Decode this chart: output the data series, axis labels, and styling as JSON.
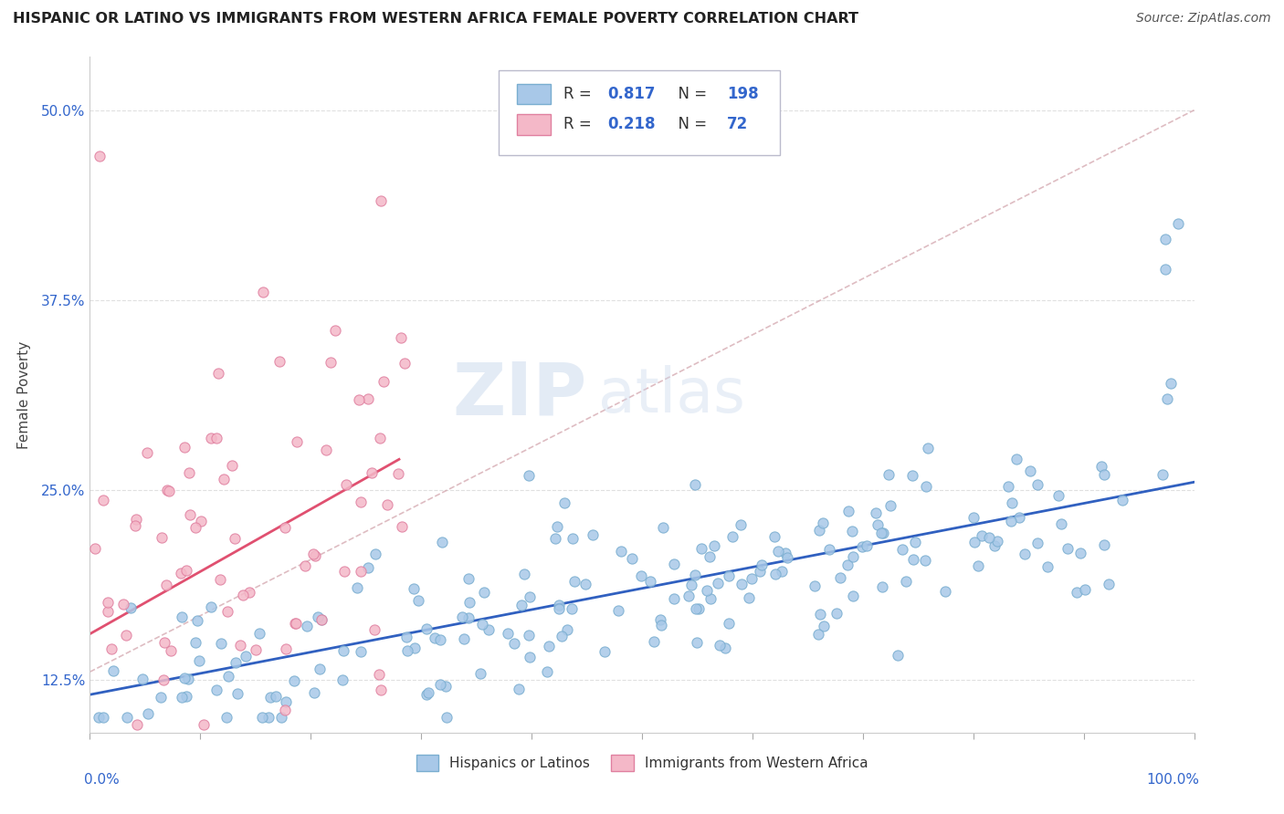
{
  "title": "HISPANIC OR LATINO VS IMMIGRANTS FROM WESTERN AFRICA FEMALE POVERTY CORRELATION CHART",
  "source_text": "Source: ZipAtlas.com",
  "ylabel": "Female Poverty",
  "ytick_labels": [
    "12.5%",
    "25.0%",
    "37.5%",
    "50.0%"
  ],
  "ytick_values": [
    0.125,
    0.25,
    0.375,
    0.5
  ],
  "xlim": [
    0.0,
    1.0
  ],
  "ylim": [
    0.09,
    0.535
  ],
  "blue_dot_color": "#A8C8E8",
  "blue_dot_edge": "#7AAED0",
  "pink_dot_color": "#F4B8C8",
  "pink_dot_edge": "#E080A0",
  "blue_line_color": "#3060C0",
  "pink_line_color": "#E05070",
  "dashed_line_color": "#D0A0A8",
  "R_blue": 0.817,
  "N_blue": 198,
  "R_pink": 0.218,
  "N_pink": 72,
  "legend_label_blue": "Hispanics or Latinos",
  "legend_label_pink": "Immigrants from Western Africa",
  "watermark": "ZIPatlas",
  "background_color": "#FFFFFF",
  "grid_color": "#DDDDDD",
  "title_color": "#222222",
  "source_color": "#555555",
  "ylabel_color": "#444444",
  "ytick_color": "#3366CC",
  "xlabel_color": "#3366CC",
  "legend_text_color": "#333333",
  "legend_value_color": "#3366CC"
}
